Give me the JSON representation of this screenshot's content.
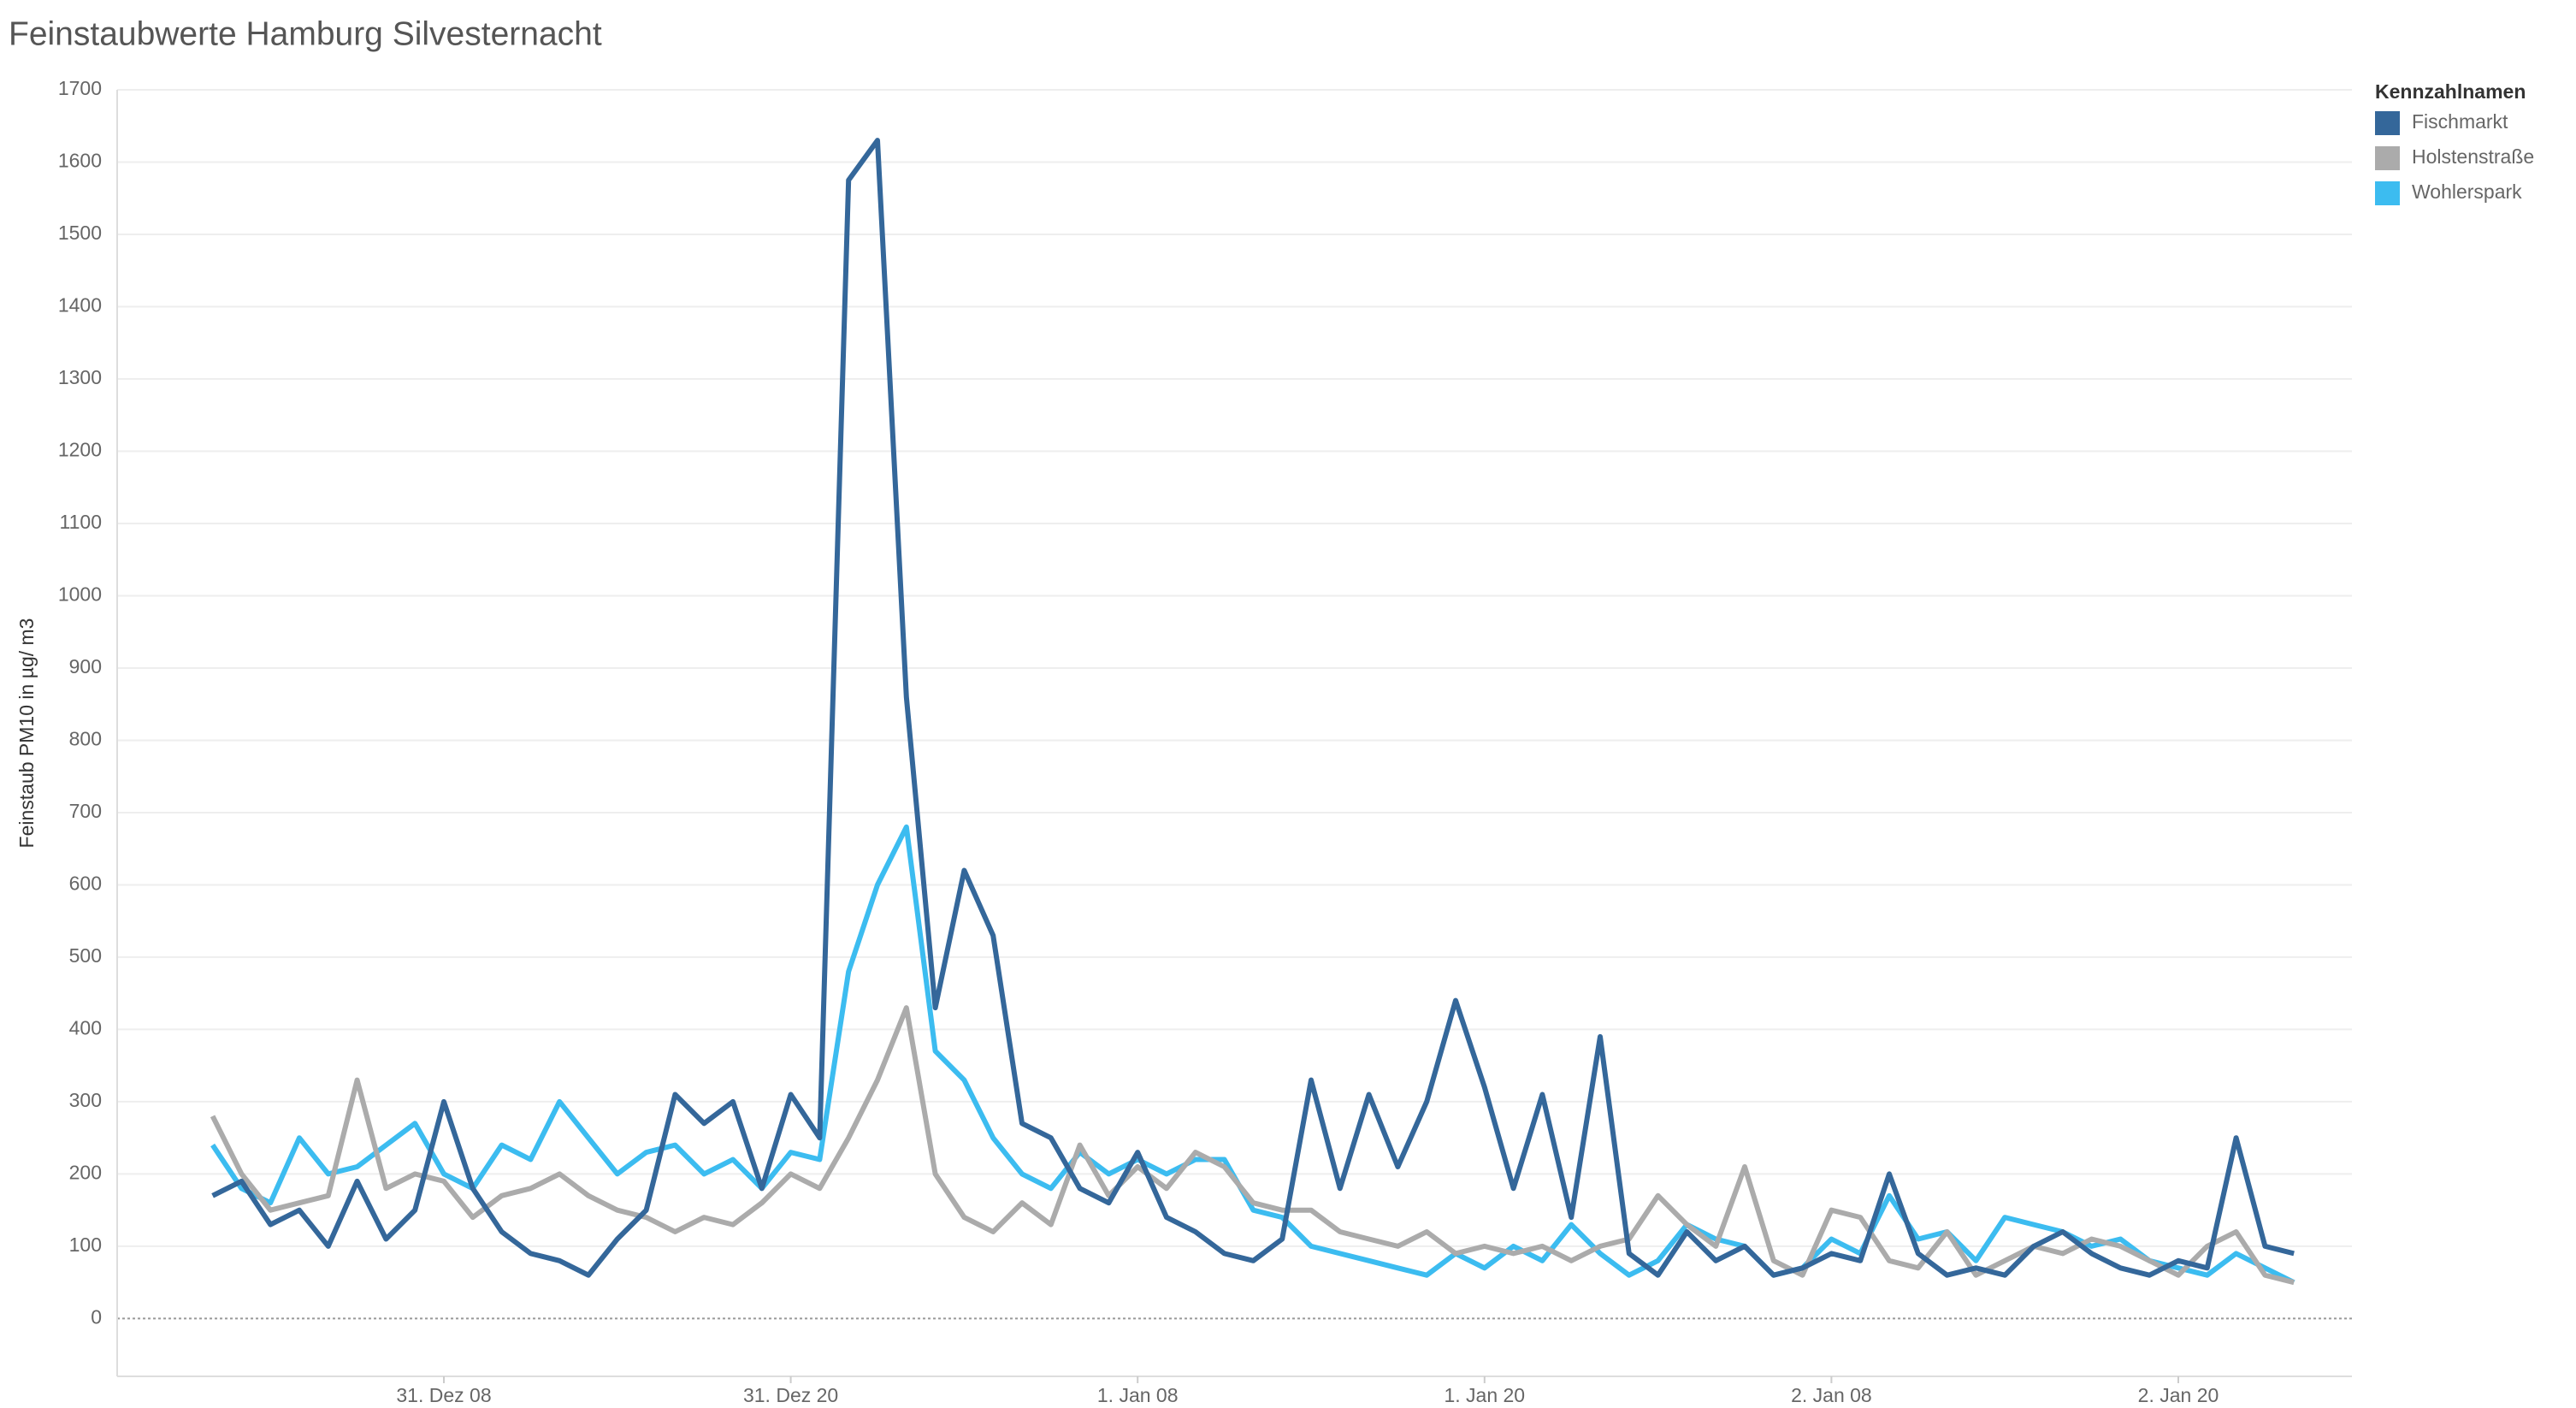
{
  "chart_data": {
    "type": "line",
    "title": "Feinstaubwerte Hamburg Silvesternacht",
    "y_label": "Feinstaub PM10 in µg/ m3",
    "legend_title": "Kennzahlnamen",
    "legend": "top-right",
    "grid": true,
    "categories": [
      null,
      null,
      null,
      null,
      null,
      null,
      null,
      null,
      "31. Dez 08",
      null,
      null,
      null,
      null,
      null,
      null,
      null,
      null,
      null,
      null,
      null,
      "31. Dez 20",
      null,
      null,
      null,
      null,
      null,
      null,
      null,
      null,
      null,
      null,
      null,
      "1. Jan 08",
      null,
      null,
      null,
      null,
      null,
      null,
      null,
      null,
      null,
      null,
      null,
      "1. Jan 20",
      null,
      null,
      null,
      null,
      null,
      null,
      null,
      null,
      null,
      null,
      null,
      "2. Jan 08",
      null,
      null,
      null,
      null,
      null,
      null,
      null,
      null,
      null,
      null,
      null,
      "2. Jan 20",
      null,
      null,
      null,
      null
    ],
    "series": [
      {
        "name": "Fischmarkt",
        "color": "#34679a",
        "values": [
          170,
          190,
          130,
          150,
          100,
          190,
          110,
          150,
          300,
          180,
          120,
          90,
          80,
          60,
          110,
          150,
          310,
          270,
          300,
          180,
          310,
          250,
          1575,
          1630,
          860,
          430,
          620,
          530,
          270,
          250,
          180,
          160,
          230,
          140,
          120,
          90,
          80,
          110,
          330,
          180,
          310,
          210,
          300,
          440,
          320,
          180,
          310,
          140,
          390,
          90,
          60,
          120,
          80,
          100,
          60,
          70,
          90,
          80,
          200,
          90,
          60,
          70,
          60,
          100,
          120,
          90,
          70,
          60,
          80,
          70,
          250,
          100,
          90
        ]
      },
      {
        "name": "Holstenstraße",
        "color": "#ababab",
        "values": [
          280,
          200,
          150,
          160,
          170,
          330,
          180,
          200,
          190,
          140,
          170,
          180,
          200,
          170,
          150,
          140,
          120,
          140,
          130,
          160,
          200,
          180,
          250,
          330,
          430,
          200,
          140,
          120,
          160,
          130,
          240,
          170,
          210,
          180,
          230,
          210,
          160,
          150,
          150,
          120,
          110,
          100,
          120,
          90,
          100,
          90,
          100,
          80,
          100,
          110,
          170,
          130,
          100,
          210,
          80,
          60,
          150,
          140,
          80,
          70,
          120,
          60,
          80,
          100,
          90,
          110,
          100,
          80,
          60,
          100,
          120,
          60,
          50
        ]
      },
      {
        "name": "Wohlerspark",
        "color": "#3cbcf0",
        "values": [
          240,
          180,
          160,
          250,
          200,
          210,
          240,
          270,
          200,
          180,
          240,
          220,
          300,
          250,
          200,
          230,
          240,
          200,
          220,
          180,
          230,
          220,
          480,
          600,
          680,
          370,
          330,
          250,
          200,
          180,
          230,
          200,
          220,
          200,
          220,
          220,
          150,
          140,
          100,
          90,
          80,
          70,
          60,
          90,
          70,
          100,
          80,
          130,
          90,
          60,
          80,
          130,
          110,
          100,
          60,
          70,
          110,
          90,
          170,
          110,
          120,
          80,
          140,
          130,
          120,
          100,
          110,
          80,
          70,
          60,
          90,
          70,
          50
        ]
      }
    ],
    "ylim": [
      -80,
      1700
    ],
    "yticks": [
      0,
      100,
      200,
      300,
      400,
      500,
      600,
      700,
      800,
      900,
      1000,
      1100,
      1200,
      1300,
      1400,
      1500,
      1600,
      1700
    ]
  }
}
